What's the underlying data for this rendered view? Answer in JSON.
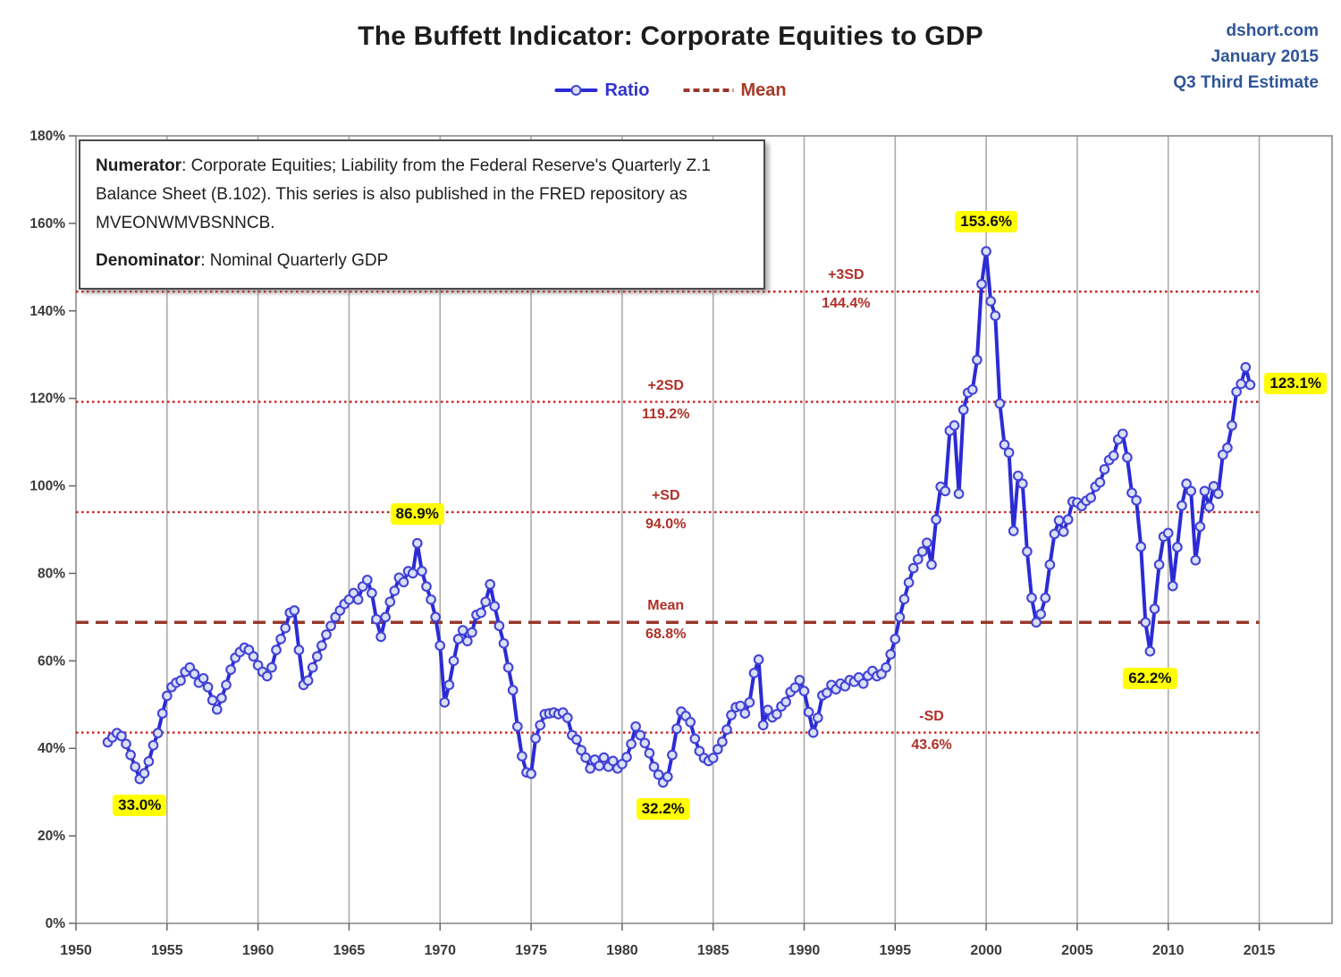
{
  "header": {
    "title": "The Buffett Indicator: Corporate Equities to GDP",
    "source_lines": [
      "dshort.com",
      "January 2015",
      "Q3 Third Estimate"
    ]
  },
  "legend": {
    "ratio_label": "Ratio",
    "mean_label": "Mean"
  },
  "info_box": {
    "numerator_label": "Numerator",
    "numerator_text": ": Corporate Equities; Liability from the Federal Reserve's Quarterly Z.1 Balance Sheet (B.102). This series is also published in the FRED repository as MVEONWMVBSNNCB.",
    "denominator_label": "Denominator",
    "denominator_text": ": Nominal Quarterly GDP"
  },
  "colors": {
    "line": "#2b2bd5",
    "marker_fill": "#d9e0f7",
    "marker_stroke": "#4343d6",
    "sd_dotted": "#cc2222",
    "mean_dashed": "#97392b",
    "sd_label_text": "#b03028",
    "gridline": "#ababab",
    "plot_border": "#8c8c8c",
    "axis_text": "#3a3a3a",
    "highlight": "#ffff00",
    "source_text": "#2f5597"
  },
  "chart_data": {
    "type": "line",
    "title": "The Buffett Indicator: Corporate Equities to GDP",
    "series_name": "Ratio",
    "frequency": "quarterly",
    "start": "1951Q4",
    "end": "2014Q3",
    "start_x": 1951.75,
    "x_step": 0.25,
    "xlim": [
      1950,
      2019
    ],
    "ylim": [
      0,
      180
    ],
    "y_tick_step": 20,
    "x_ticks": [
      1950,
      1955,
      1960,
      1965,
      1970,
      1975,
      1980,
      1985,
      1990,
      1995,
      2000,
      2005,
      2010,
      2015
    ],
    "grid_years": [
      1955,
      1960,
      1965,
      1970,
      1975,
      1980,
      1985,
      1990,
      1995,
      2000,
      2005,
      2010,
      2015
    ],
    "grid": "vertical-only",
    "legend_position": "top-center",
    "values": [
      41.4,
      42.5,
      43.5,
      42.8,
      41.0,
      38.5,
      35.8,
      33.0,
      34.3,
      37.0,
      40.7,
      43.5,
      48.0,
      52.0,
      54.0,
      55.0,
      55.5,
      57.5,
      58.5,
      57.0,
      55.0,
      56.0,
      54.0,
      51.0,
      48.9,
      51.5,
      54.5,
      58.0,
      60.7,
      62.0,
      63.0,
      62.5,
      61.0,
      59.0,
      57.5,
      56.5,
      58.5,
      62.5,
      65.0,
      67.5,
      71.0,
      71.5,
      62.5,
      54.5,
      55.5,
      58.5,
      61.0,
      63.5,
      66.0,
      68.0,
      70.0,
      71.5,
      73.0,
      74.0,
      75.5,
      74.0,
      77.0,
      78.5,
      75.5,
      69.5,
      65.5,
      70.0,
      73.5,
      76.0,
      79.0,
      78.0,
      80.5,
      80.0,
      86.9,
      80.5,
      77.0,
      74.0,
      70.0,
      63.5,
      50.5,
      54.5,
      60.0,
      65.0,
      67.0,
      64.5,
      66.5,
      70.5,
      71.0,
      73.5,
      77.5,
      72.5,
      68.0,
      64.0,
      58.5,
      53.3,
      45.0,
      38.2,
      34.5,
      34.2,
      42.3,
      45.3,
      47.8,
      48.0,
      48.2,
      47.8,
      48.2,
      47.0,
      43.0,
      42.0,
      39.6,
      37.9,
      35.4,
      37.4,
      36.0,
      37.9,
      35.8,
      37.1,
      35.4,
      36.4,
      38.0,
      41.0,
      45.0,
      43.0,
      41.2,
      38.9,
      35.8,
      34.0,
      32.2,
      33.5,
      38.5,
      44.5,
      48.4,
      47.4,
      46.0,
      42.2,
      39.4,
      37.8,
      37.1,
      37.8,
      39.8,
      41.5,
      44.3,
      47.6,
      49.4,
      49.7,
      48.0,
      50.5,
      57.2,
      60.3,
      45.3,
      48.8,
      47.1,
      47.8,
      49.6,
      50.6,
      52.9,
      53.9,
      55.6,
      53.1,
      48.3,
      43.6,
      47.0,
      52.1,
      52.7,
      54.5,
      53.5,
      54.8,
      54.2,
      55.6,
      55.2,
      56.2,
      54.8,
      56.6,
      57.7,
      56.5,
      57.0,
      58.5,
      61.5,
      65.0,
      70.0,
      74.1,
      77.9,
      81.2,
      83.2,
      85.0,
      87.0,
      82.0,
      92.3,
      99.8,
      98.8,
      112.6,
      113.8,
      98.2,
      117.4,
      121.3,
      122.0,
      128.8,
      146.1,
      153.6,
      142.2,
      138.9,
      118.8,
      109.4,
      107.6,
      89.7,
      102.3,
      100.5,
      85.0,
      74.4,
      68.8,
      70.7,
      74.4,
      82.0,
      89.0,
      92.1,
      89.5,
      92.3,
      96.4,
      96.2,
      95.4,
      96.6,
      97.3,
      99.8,
      100.8,
      103.8,
      105.9,
      106.9,
      110.6,
      111.9,
      106.5,
      98.4,
      96.7,
      86.1,
      68.8,
      62.2,
      71.9,
      82.0,
      88.4,
      89.2,
      77.1,
      86.0,
      95.5,
      100.5,
      98.8,
      83.0,
      90.7,
      98.8,
      95.2,
      99.9,
      98.2,
      107.1,
      108.7,
      113.8,
      121.5,
      123.3,
      127.1,
      123.1
    ],
    "sd_lines": [
      {
        "label": "+3SD",
        "value_label": "144.4%",
        "value": 144.4,
        "style": "dotted",
        "label_year": 1992.3
      },
      {
        "label": "+2SD",
        "value_label": "119.2%",
        "value": 119.2,
        "style": "dotted",
        "label_year": 1982.4
      },
      {
        "label": "+SD",
        "value_label": "94.0%",
        "value": 94.0,
        "style": "dotted",
        "label_year": 1982.4
      },
      {
        "label": "Mean",
        "value_label": "68.8%",
        "value": 68.8,
        "style": "dashed",
        "label_year": 1982.4
      },
      {
        "label": "-SD",
        "value_label": "43.6%",
        "value": 43.6,
        "style": "dotted",
        "label_year": 1997.0
      }
    ],
    "callouts": [
      {
        "text": "33.0%",
        "x": 1953.5,
        "y": 33.0,
        "placement": "below"
      },
      {
        "text": "86.9%",
        "x": 1968.75,
        "y": 86.9,
        "placement": "above"
      },
      {
        "text": "32.2%",
        "x": 1982.25,
        "y": 32.2,
        "placement": "below"
      },
      {
        "text": "153.6%",
        "x": 2000.0,
        "y": 153.6,
        "placement": "above"
      },
      {
        "text": "62.2%",
        "x": 2009.0,
        "y": 62.2,
        "placement": "below"
      },
      {
        "text": "123.1%",
        "x": 2014.5,
        "y": 123.1,
        "placement": "right"
      }
    ]
  }
}
